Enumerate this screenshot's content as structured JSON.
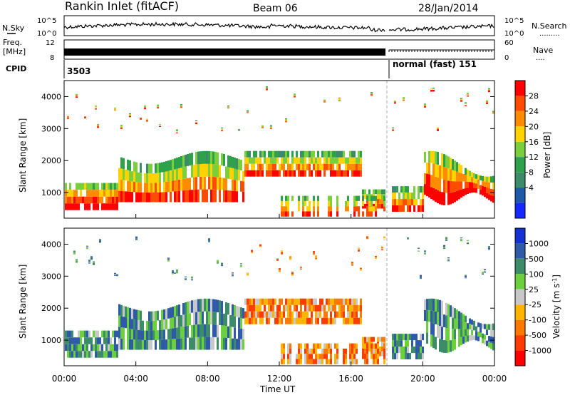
{
  "header": {
    "station": "Rankin Inlet (fitACF)",
    "beam": "Beam 06",
    "date": "28/Jan/2014"
  },
  "strip": {
    "nsky_label": "N.Sky",
    "nsearch_label": "N.Search",
    "nsearch_dots": ".........",
    "freq_label_1": "Freq.",
    "freq_label_2": "[MHz]",
    "nave_label": "Nave",
    "nave_dots": "....",
    "cpid_label": "CPID",
    "cpid_value_1": "3503",
    "cpid_value_2": "normal (fast) 151",
    "noise_ticks": [
      "10^5",
      "10^0"
    ],
    "freq_ticks": [
      "12",
      "8"
    ],
    "nave_ticks": [
      "60",
      "0"
    ]
  },
  "chart_data": [
    {
      "type": "heatmap",
      "name": "power",
      "ylabel": "Slant Range [km]",
      "ylim": [
        200,
        4500
      ],
      "yticks": [
        1000,
        2000,
        3000,
        4000
      ],
      "colorbar": {
        "label": "Power [dB]",
        "ticks": [
          "28",
          "24",
          "20",
          "16",
          "12",
          "8",
          "4"
        ],
        "colors": [
          "#ff0000",
          "#ff4c00",
          "#ff8c00",
          "#ffd200",
          "#7ccf3c",
          "#2ea24a",
          "#3c8c6a",
          "#1e5aa8",
          "#1428ff"
        ]
      }
    },
    {
      "type": "heatmap",
      "name": "velocity",
      "ylabel": "Slant Range [km]",
      "ylim": [
        200,
        4500
      ],
      "yticks": [
        1000,
        2000,
        3000,
        4000
      ],
      "colorbar": {
        "label": "Velocity [m s^-1]",
        "ticks": [
          "1000",
          "500",
          "100",
          "25",
          "-25",
          "-100",
          "-500",
          "-1000"
        ],
        "colors": [
          "#1432d2",
          "#2f5aa8",
          "#3c8c6a",
          "#6ccf3c",
          "#c8c8c8",
          "#ffb400",
          "#ff7800",
          "#ff3c00",
          "#ff0000"
        ]
      }
    }
  ],
  "xaxis": {
    "label": "Time UT",
    "ticks": [
      "00:00",
      "04:00",
      "08:00",
      "12:00",
      "16:00",
      "20:00",
      "00:00"
    ]
  }
}
